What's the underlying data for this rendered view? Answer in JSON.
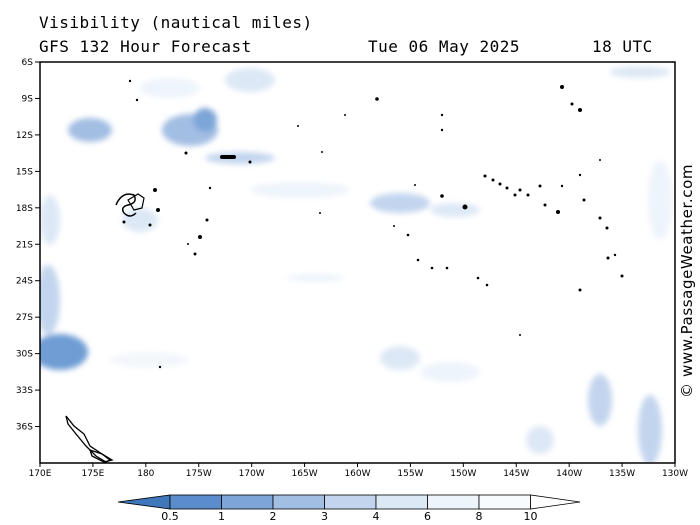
{
  "title": {
    "variable": "Visibility (nautical miles)",
    "model": "GFS 132 Hour Forecast",
    "date": "Tue 06 May 2025",
    "time": "18 UTC"
  },
  "credit": "© www.PassageWeather.com",
  "map": {
    "lon_labels": [
      "170E",
      "175E",
      "180",
      "175W",
      "170W",
      "165W",
      "160W",
      "155W",
      "150W",
      "145W",
      "140W",
      "135W",
      "130W"
    ],
    "lat_labels": [
      "6S",
      "9S",
      "12S",
      "15S",
      "18S",
      "21S",
      "24S",
      "27S",
      "30S",
      "33S",
      "36S"
    ],
    "lon_range": [
      170,
      230
    ],
    "lat_range": [
      -6,
      -39
    ]
  },
  "colorbar": {
    "labels": [
      "0.5",
      "1",
      "2",
      "3",
      "4",
      "6",
      "8",
      "10"
    ],
    "colors": [
      "#3f77bb",
      "#5b8dcc",
      "#7ea5d8",
      "#a3bee3",
      "#c3d5ee",
      "#dde8f6",
      "#eef4fb",
      "#f8fbfe",
      "#ffffff"
    ]
  }
}
